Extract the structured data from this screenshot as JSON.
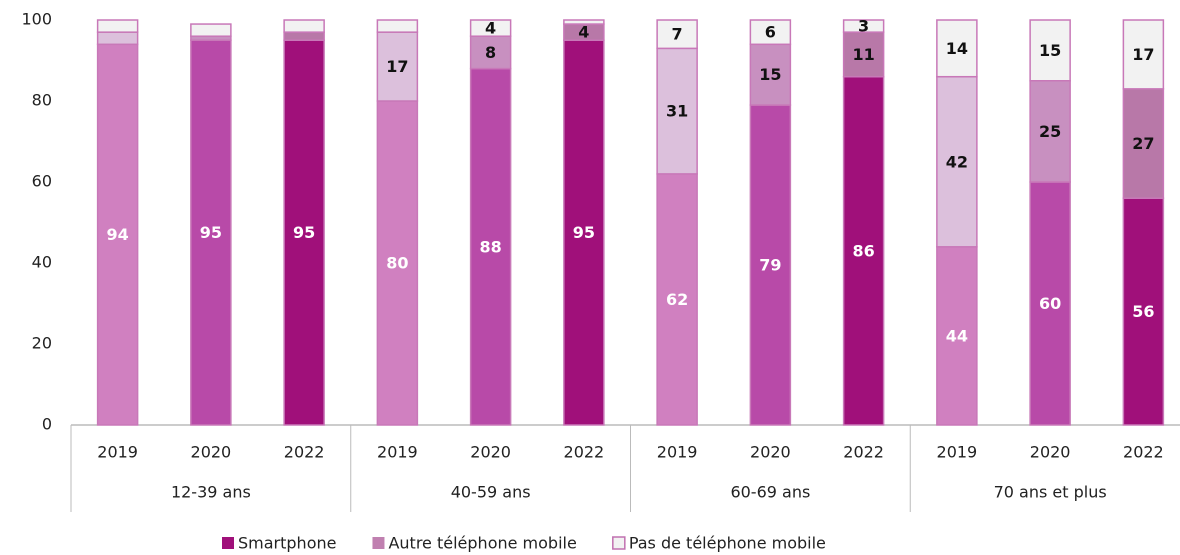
{
  "chart_data": {
    "type": "stacked_bar",
    "categories": [
      "2019",
      "2020",
      "2022",
      "2019",
      "2020",
      "2022",
      "2019",
      "2020",
      "2022",
      "2019",
      "2020",
      "2022"
    ],
    "groups": [
      "12-39 ans",
      "40-59 ans",
      "60-69 ans",
      "70 ans et plus"
    ],
    "series": [
      {
        "name": "Smartphone",
        "color": "#a0107a",
        "label_color": "#ffffff",
        "colors": [
          "#d080c0",
          "#b84aa8",
          "#a0107a",
          "#d080c0",
          "#b84aa8",
          "#a0107a",
          "#d080c0",
          "#b84aa8",
          "#a0107a",
          "#d080c0",
          "#b84aa8",
          "#a0107a"
        ],
        "values": [
          94,
          95,
          95,
          80,
          88,
          95,
          62,
          79,
          86,
          44,
          60,
          56
        ],
        "value_labels": [
          "94",
          "95",
          "95",
          "80",
          "88",
          "95",
          "62",
          "79",
          "86",
          "44",
          "60",
          "56"
        ]
      },
      {
        "name": "Autre téléphone mobile",
        "color": "#c080b0",
        "label_color": "#111111",
        "colors": [
          "#dcc0dc",
          "#c890c0",
          "#b878a8",
          "#dcc0dc",
          "#c890c0",
          "#b878a8",
          "#dcc0dc",
          "#c890c0",
          "#b878a8",
          "#dcc0dc",
          "#c890c0",
          "#b878a8"
        ],
        "values": [
          3,
          1,
          2,
          17,
          8,
          4,
          31,
          15,
          11,
          42,
          25,
          27
        ],
        "value_labels": [
          null,
          null,
          null,
          "17",
          "8",
          "4",
          "31",
          "15",
          "11",
          "42",
          "25",
          "27"
        ]
      },
      {
        "name": "Pas de téléphone mobile",
        "color": "#f2f2f2",
        "label_color": "#111111",
        "colors": [
          "#f2f2f2",
          "#f2f2f2",
          "#f2f2f2",
          "#f2f2f2",
          "#f2f2f2",
          "#f2f2f2",
          "#f2f2f2",
          "#f2f2f2",
          "#f2f2f2",
          "#f2f2f2",
          "#f2f2f2",
          "#f2f2f2"
        ],
        "values": [
          3,
          3,
          3,
          3,
          4,
          1,
          7,
          6,
          3,
          14,
          15,
          17
        ],
        "value_labels": [
          null,
          null,
          null,
          null,
          "4",
          null,
          "7",
          "6",
          "3",
          "14",
          "15",
          "17"
        ]
      }
    ],
    "ylim": [
      0,
      100
    ],
    "yticks": [
      0,
      20,
      40,
      60,
      80,
      100
    ],
    "grid": false
  }
}
